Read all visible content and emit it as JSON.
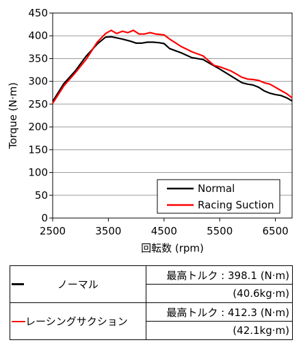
{
  "chart_data": {
    "type": "line",
    "xlabel": "回転数 (rpm)",
    "ylabel": "Torque (N·m)",
    "xlim": [
      2500,
      6800
    ],
    "ylim": [
      0,
      450
    ],
    "xticks": [
      2500,
      3500,
      4500,
      5500,
      6500
    ],
    "yticks": [
      0,
      50,
      100,
      150,
      200,
      250,
      300,
      350,
      400,
      450
    ],
    "grid": "horizontal",
    "legend_placement": "bottom-right",
    "series": [
      {
        "name": "Normal",
        "color": "#000000",
        "x": [
          2500,
          2700,
          2900,
          3100,
          3300,
          3450,
          3550,
          3750,
          3900,
          4000,
          4100,
          4200,
          4300,
          4400,
          4500,
          4600,
          4800,
          5000,
          5200,
          5400,
          5500,
          5700,
          5900,
          6000,
          6100,
          6200,
          6300,
          6400,
          6500,
          6600,
          6700,
          6800
        ],
        "y": [
          256,
          295,
          322,
          355,
          382,
          397,
          398,
          393,
          388,
          384,
          384,
          386,
          386,
          385,
          383,
          372,
          363,
          352,
          348,
          334,
          327,
          312,
          297,
          294,
          292,
          287,
          279,
          274,
          271,
          269,
          264,
          257
        ]
      },
      {
        "name": "Racing Suction",
        "color": "#ff0000",
        "x": [
          2500,
          2700,
          2900,
          3100,
          3300,
          3450,
          3550,
          3650,
          3750,
          3850,
          3950,
          4050,
          4150,
          4250,
          4350,
          4500,
          4600,
          4800,
          5000,
          5200,
          5400,
          5500,
          5700,
          5900,
          6000,
          6100,
          6200,
          6300,
          6400,
          6500,
          6600,
          6700,
          6800
        ],
        "y": [
          252,
          290,
          318,
          348,
          386,
          405,
          412,
          405,
          410,
          407,
          412,
          404,
          404,
          407,
          404,
          402,
          393,
          377,
          365,
          356,
          335,
          332,
          323,
          309,
          305,
          304,
          302,
          297,
          294,
          287,
          280,
          273,
          264
        ]
      }
    ]
  },
  "table": {
    "rows": [
      {
        "series_name": "ノーマル",
        "spec_label": "最高トルク : 398.1 (N·m)",
        "spec_sub": "(40.6kg·m)"
      },
      {
        "series_name": "レーシングサクション",
        "spec_label": "最高トルク : 412.3 (N·m)",
        "spec_sub": "(42.1kg·m)"
      }
    ]
  }
}
